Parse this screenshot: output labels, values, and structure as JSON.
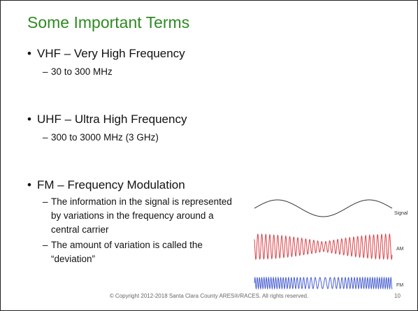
{
  "title": "Some Important Terms",
  "bullets": [
    {
      "text": "VHF – Very High Frequency",
      "sub": [
        "30 to 300 MHz"
      ]
    },
    {
      "text": "UHF – Ultra High Frequency",
      "sub": [
        "300 to 3000 MHz (3 GHz)"
      ]
    },
    {
      "text": "FM – Frequency Modulation",
      "sub": [
        "The information in the signal is represented by variations in the frequency around a central carrier",
        "The amount of variation is called the “deviation”"
      ]
    }
  ],
  "figure": {
    "labels": [
      "Signal",
      "AM",
      "FM"
    ]
  },
  "footer": {
    "copyright": "© Copyright 2012-2018  Santa Clara County ARES®/RACES. All rights reserved.",
    "page": "10"
  }
}
